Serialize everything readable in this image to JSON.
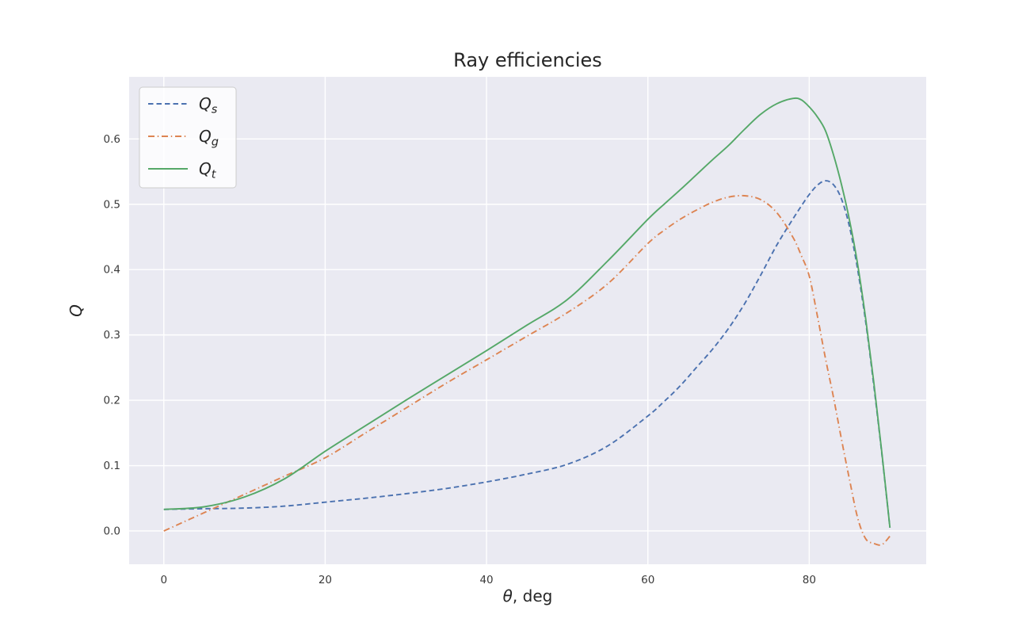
{
  "chart_data": {
    "type": "line",
    "title": "Ray efficiencies",
    "xlabel_math": "θ",
    "xlabel_rest": ", deg",
    "ylabel": "Q",
    "x_range": [
      -4.3,
      94.5
    ],
    "y_range": [
      -0.051,
      0.695
    ],
    "x_tick_values": [
      0,
      20,
      40,
      60,
      80
    ],
    "x_tick_labels": [
      "0",
      "20",
      "40",
      "60",
      "80"
    ],
    "y_tick_values": [
      0.0,
      0.1,
      0.2,
      0.3,
      0.4,
      0.5,
      0.6
    ],
    "y_tick_labels": [
      "0.0",
      "0.1",
      "0.2",
      "0.3",
      "0.4",
      "0.5",
      "0.6"
    ],
    "grid": true,
    "legend_position": "upper left",
    "plot_background_color": "#EAEAF2",
    "grid_color": "#FFFFFF",
    "text_color": "#262626",
    "tick_color": "#3a3a3a",
    "x": [
      0,
      5,
      10,
      15,
      20,
      25,
      30,
      35,
      40,
      45,
      50,
      55,
      60,
      62,
      64,
      66,
      68,
      70,
      72,
      74,
      76,
      78,
      79,
      80,
      81,
      82,
      83,
      84,
      85,
      86,
      87,
      88,
      89,
      90
    ],
    "series": [
      {
        "label": "Q_s",
        "name_main": "Q",
        "name_sub": "s",
        "style": "dashed",
        "color": "#4C72B0",
        "values": [
          0.033,
          0.034,
          0.035,
          0.038,
          0.044,
          0.05,
          0.057,
          0.065,
          0.075,
          0.087,
          0.102,
          0.13,
          0.176,
          0.198,
          0.222,
          0.25,
          0.278,
          0.31,
          0.348,
          0.392,
          0.438,
          0.478,
          0.497,
          0.515,
          0.529,
          0.536,
          0.53,
          0.508,
          0.465,
          0.4,
          0.32,
          0.223,
          0.118,
          0.005
        ]
      },
      {
        "label": "Q_g",
        "name_main": "Q",
        "name_sub": "g",
        "style": "dashdot",
        "color": "#DD8452",
        "values": [
          0.0,
          0.028,
          0.056,
          0.084,
          0.112,
          0.15,
          0.188,
          0.226,
          0.262,
          0.298,
          0.334,
          0.378,
          0.44,
          0.46,
          0.477,
          0.491,
          0.503,
          0.511,
          0.513,
          0.507,
          0.487,
          0.449,
          0.422,
          0.39,
          0.33,
          0.265,
          0.205,
          0.14,
          0.078,
          0.02,
          -0.012,
          -0.019,
          -0.021,
          -0.008
        ]
      },
      {
        "label": "Q_t",
        "name_main": "Q",
        "name_sub": "t",
        "style": "solid",
        "color": "#55A868",
        "values": [
          0.033,
          0.037,
          0.052,
          0.08,
          0.122,
          0.161,
          0.2,
          0.238,
          0.276,
          0.315,
          0.354,
          0.413,
          0.477,
          0.5,
          0.522,
          0.545,
          0.568,
          0.59,
          0.615,
          0.638,
          0.654,
          0.662,
          0.66,
          0.649,
          0.634,
          0.613,
          0.576,
          0.53,
          0.475,
          0.408,
          0.325,
          0.228,
          0.12,
          0.005
        ]
      }
    ]
  }
}
